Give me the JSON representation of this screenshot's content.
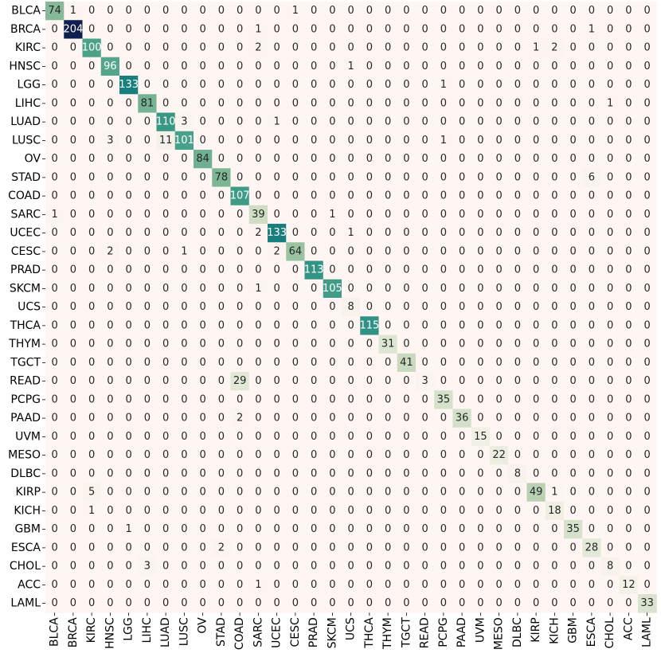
{
  "chart_data": {
    "type": "heatmap",
    "title": "",
    "xlabel": "",
    "ylabel": "",
    "row_labels": [
      "BLCA",
      "BRCA",
      "KIRC",
      "HNSC",
      "LGG",
      "LIHC",
      "LUAD",
      "LUSC",
      "OV",
      "STAD",
      "COAD",
      "SARC",
      "UCEC",
      "CESC",
      "PRAD",
      "SKCM",
      "UCS",
      "THCA",
      "THYM",
      "TGCT",
      "READ",
      "PCPG",
      "PAAD",
      "UVM",
      "MESO",
      "DLBC",
      "KIRP",
      "KICH",
      "GBM",
      "ESCA",
      "CHOL",
      "ACC",
      "LAML"
    ],
    "col_labels": [
      "BLCA",
      "BRCA",
      "KIRC",
      "HNSC",
      "LGG",
      "LIHC",
      "LUAD",
      "LUSC",
      "OV",
      "STAD",
      "COAD",
      "SARC",
      "UCEC",
      "CESC",
      "PRAD",
      "SKCM",
      "UCS",
      "THCA",
      "THYM",
      "TGCT",
      "READ",
      "PCPG",
      "PAAD",
      "UVM",
      "MESO",
      "DLBC",
      "KIRP",
      "KICH",
      "GBM",
      "ESCA",
      "CHOL",
      "ACC",
      "LAML"
    ],
    "values": [
      [
        74,
        1,
        0,
        0,
        0,
        0,
        0,
        0,
        0,
        0,
        0,
        0,
        0,
        1,
        0,
        0,
        0,
        0,
        0,
        0,
        0,
        0,
        0,
        0,
        0,
        0,
        0,
        0,
        0,
        0,
        0,
        0,
        0
      ],
      [
        0,
        204,
        0,
        0,
        0,
        0,
        0,
        0,
        0,
        0,
        0,
        1,
        0,
        0,
        0,
        0,
        0,
        0,
        0,
        0,
        0,
        0,
        0,
        0,
        0,
        0,
        0,
        0,
        0,
        1,
        0,
        0,
        0
      ],
      [
        0,
        0,
        100,
        0,
        0,
        0,
        0,
        0,
        0,
        0,
        0,
        2,
        0,
        0,
        0,
        0,
        0,
        0,
        0,
        0,
        0,
        0,
        0,
        0,
        0,
        0,
        1,
        2,
        0,
        0,
        0,
        0,
        0
      ],
      [
        0,
        0,
        0,
        96,
        0,
        0,
        0,
        0,
        0,
        0,
        0,
        0,
        0,
        0,
        0,
        0,
        1,
        0,
        0,
        0,
        0,
        0,
        0,
        0,
        0,
        0,
        0,
        0,
        0,
        0,
        0,
        0,
        0
      ],
      [
        0,
        0,
        0,
        0,
        133,
        0,
        0,
        0,
        0,
        0,
        0,
        0,
        0,
        0,
        0,
        0,
        0,
        0,
        0,
        0,
        0,
        1,
        0,
        0,
        0,
        0,
        0,
        0,
        0,
        0,
        0,
        0,
        0
      ],
      [
        0,
        0,
        0,
        0,
        0,
        81,
        0,
        0,
        0,
        0,
        0,
        0,
        0,
        0,
        0,
        0,
        0,
        0,
        0,
        0,
        0,
        0,
        0,
        0,
        0,
        0,
        0,
        0,
        0,
        0,
        1,
        0,
        0
      ],
      [
        0,
        0,
        0,
        0,
        0,
        0,
        110,
        3,
        0,
        0,
        0,
        0,
        1,
        0,
        0,
        0,
        0,
        0,
        0,
        0,
        0,
        0,
        0,
        0,
        0,
        0,
        0,
        0,
        0,
        0,
        0,
        0,
        0
      ],
      [
        0,
        0,
        0,
        3,
        0,
        0,
        11,
        101,
        0,
        0,
        0,
        0,
        0,
        0,
        0,
        0,
        0,
        0,
        0,
        0,
        0,
        1,
        0,
        0,
        0,
        0,
        0,
        0,
        0,
        0,
        0,
        0,
        0
      ],
      [
        0,
        0,
        0,
        0,
        0,
        0,
        0,
        0,
        84,
        0,
        0,
        0,
        0,
        0,
        0,
        0,
        0,
        0,
        0,
        0,
        0,
        0,
        0,
        0,
        0,
        0,
        0,
        0,
        0,
        0,
        0,
        0,
        0
      ],
      [
        0,
        0,
        0,
        0,
        0,
        0,
        0,
        0,
        0,
        78,
        0,
        0,
        0,
        0,
        0,
        0,
        0,
        0,
        0,
        0,
        0,
        0,
        0,
        0,
        0,
        0,
        0,
        0,
        0,
        6,
        0,
        0,
        0
      ],
      [
        0,
        0,
        0,
        0,
        0,
        0,
        0,
        0,
        0,
        0,
        107,
        0,
        0,
        0,
        0,
        0,
        0,
        0,
        0,
        0,
        0,
        0,
        0,
        0,
        0,
        0,
        0,
        0,
        0,
        0,
        0,
        0,
        0
      ],
      [
        1,
        0,
        0,
        0,
        0,
        0,
        0,
        0,
        0,
        0,
        0,
        39,
        0,
        0,
        0,
        1,
        0,
        0,
        0,
        0,
        0,
        0,
        0,
        0,
        0,
        0,
        0,
        0,
        0,
        0,
        0,
        0,
        0
      ],
      [
        0,
        0,
        0,
        0,
        0,
        0,
        0,
        0,
        0,
        0,
        0,
        2,
        133,
        0,
        0,
        0,
        1,
        0,
        0,
        0,
        0,
        0,
        0,
        0,
        0,
        0,
        0,
        0,
        0,
        0,
        0,
        0,
        0
      ],
      [
        0,
        0,
        0,
        2,
        0,
        0,
        0,
        1,
        0,
        0,
        0,
        0,
        2,
        64,
        0,
        0,
        0,
        0,
        0,
        0,
        0,
        0,
        0,
        0,
        0,
        0,
        0,
        0,
        0,
        0,
        0,
        0,
        0
      ],
      [
        0,
        0,
        0,
        0,
        0,
        0,
        0,
        0,
        0,
        0,
        0,
        0,
        0,
        0,
        113,
        0,
        0,
        0,
        0,
        0,
        0,
        0,
        0,
        0,
        0,
        0,
        0,
        0,
        0,
        0,
        0,
        0,
        0
      ],
      [
        0,
        0,
        0,
        0,
        0,
        0,
        0,
        0,
        0,
        0,
        0,
        1,
        0,
        0,
        0,
        105,
        0,
        0,
        0,
        0,
        0,
        0,
        0,
        0,
        0,
        0,
        0,
        0,
        0,
        0,
        0,
        0,
        0
      ],
      [
        0,
        0,
        0,
        0,
        0,
        0,
        0,
        0,
        0,
        0,
        0,
        0,
        0,
        0,
        0,
        0,
        8,
        0,
        0,
        0,
        0,
        0,
        0,
        0,
        0,
        0,
        0,
        0,
        0,
        0,
        0,
        0,
        0
      ],
      [
        0,
        0,
        0,
        0,
        0,
        0,
        0,
        0,
        0,
        0,
        0,
        0,
        0,
        0,
        0,
        0,
        0,
        115,
        0,
        0,
        0,
        0,
        0,
        0,
        0,
        0,
        0,
        0,
        0,
        0,
        0,
        0,
        0
      ],
      [
        0,
        0,
        0,
        0,
        0,
        0,
        0,
        0,
        0,
        0,
        0,
        0,
        0,
        0,
        0,
        0,
        0,
        0,
        31,
        0,
        0,
        0,
        0,
        0,
        0,
        0,
        0,
        0,
        0,
        0,
        0,
        0,
        0
      ],
      [
        0,
        0,
        0,
        0,
        0,
        0,
        0,
        0,
        0,
        0,
        0,
        0,
        0,
        0,
        0,
        0,
        0,
        0,
        0,
        41,
        0,
        0,
        0,
        0,
        0,
        0,
        0,
        0,
        0,
        0,
        0,
        0,
        0
      ],
      [
        0,
        0,
        0,
        0,
        0,
        0,
        0,
        0,
        0,
        0,
        29,
        0,
        0,
        0,
        0,
        0,
        0,
        0,
        0,
        0,
        3,
        0,
        0,
        0,
        0,
        0,
        0,
        0,
        0,
        0,
        0,
        0,
        0
      ],
      [
        0,
        0,
        0,
        0,
        0,
        0,
        0,
        0,
        0,
        0,
        0,
        0,
        0,
        0,
        0,
        0,
        0,
        0,
        0,
        0,
        0,
        35,
        0,
        0,
        0,
        0,
        0,
        0,
        0,
        0,
        0,
        0,
        0
      ],
      [
        0,
        0,
        0,
        0,
        0,
        0,
        0,
        0,
        0,
        0,
        2,
        0,
        0,
        0,
        0,
        0,
        0,
        0,
        0,
        0,
        0,
        0,
        36,
        0,
        0,
        0,
        0,
        0,
        0,
        0,
        0,
        0,
        0
      ],
      [
        0,
        0,
        0,
        0,
        0,
        0,
        0,
        0,
        0,
        0,
        0,
        0,
        0,
        0,
        0,
        0,
        0,
        0,
        0,
        0,
        0,
        0,
        0,
        15,
        0,
        0,
        0,
        0,
        0,
        0,
        0,
        0,
        0
      ],
      [
        0,
        0,
        0,
        0,
        0,
        0,
        0,
        0,
        0,
        0,
        0,
        0,
        0,
        0,
        0,
        0,
        0,
        0,
        0,
        0,
        0,
        0,
        0,
        0,
        22,
        0,
        0,
        0,
        0,
        0,
        0,
        0,
        0
      ],
      [
        0,
        0,
        0,
        0,
        0,
        0,
        0,
        0,
        0,
        0,
        0,
        0,
        0,
        0,
        0,
        0,
        0,
        0,
        0,
        0,
        0,
        0,
        0,
        0,
        0,
        8,
        0,
        0,
        0,
        0,
        0,
        0,
        0
      ],
      [
        0,
        0,
        5,
        0,
        0,
        0,
        0,
        0,
        0,
        0,
        0,
        0,
        0,
        0,
        0,
        0,
        0,
        0,
        0,
        0,
        0,
        0,
        0,
        0,
        0,
        0,
        49,
        1,
        0,
        0,
        0,
        0,
        0
      ],
      [
        0,
        0,
        1,
        0,
        0,
        0,
        0,
        0,
        0,
        0,
        0,
        0,
        0,
        0,
        0,
        0,
        0,
        0,
        0,
        0,
        0,
        0,
        0,
        0,
        0,
        0,
        0,
        18,
        0,
        0,
        0,
        0,
        0
      ],
      [
        0,
        0,
        0,
        0,
        1,
        0,
        0,
        0,
        0,
        0,
        0,
        0,
        0,
        0,
        0,
        0,
        0,
        0,
        0,
        0,
        0,
        0,
        0,
        0,
        0,
        0,
        0,
        0,
        35,
        0,
        0,
        0,
        0
      ],
      [
        0,
        0,
        0,
        0,
        0,
        0,
        0,
        0,
        0,
        2,
        0,
        0,
        0,
        0,
        0,
        0,
        0,
        0,
        0,
        0,
        0,
        0,
        0,
        0,
        0,
        0,
        0,
        0,
        0,
        28,
        0,
        0,
        0
      ],
      [
        0,
        0,
        0,
        0,
        0,
        3,
        0,
        0,
        0,
        0,
        0,
        0,
        0,
        0,
        0,
        0,
        0,
        0,
        0,
        0,
        0,
        0,
        0,
        0,
        0,
        0,
        0,
        0,
        0,
        0,
        8,
        0,
        0
      ],
      [
        0,
        0,
        0,
        0,
        0,
        0,
        0,
        0,
        0,
        0,
        0,
        1,
        0,
        0,
        0,
        0,
        0,
        0,
        0,
        0,
        0,
        0,
        0,
        0,
        0,
        0,
        0,
        0,
        0,
        0,
        0,
        12,
        0
      ],
      [
        0,
        0,
        0,
        0,
        0,
        0,
        0,
        0,
        0,
        0,
        0,
        0,
        0,
        0,
        0,
        0,
        0,
        0,
        0,
        0,
        0,
        0,
        0,
        0,
        0,
        0,
        0,
        0,
        0,
        0,
        0,
        0,
        33
      ]
    ],
    "colormap": [
      "#fff5f3",
      "#e8ecdc",
      "#b6cfaf",
      "#80b796",
      "#46a088",
      "#1a8580",
      "#0f6a78",
      "#0b4a69",
      "#0d1f4d"
    ],
    "vmin": 0,
    "vmax": 204,
    "grid": false,
    "legend": "none"
  }
}
